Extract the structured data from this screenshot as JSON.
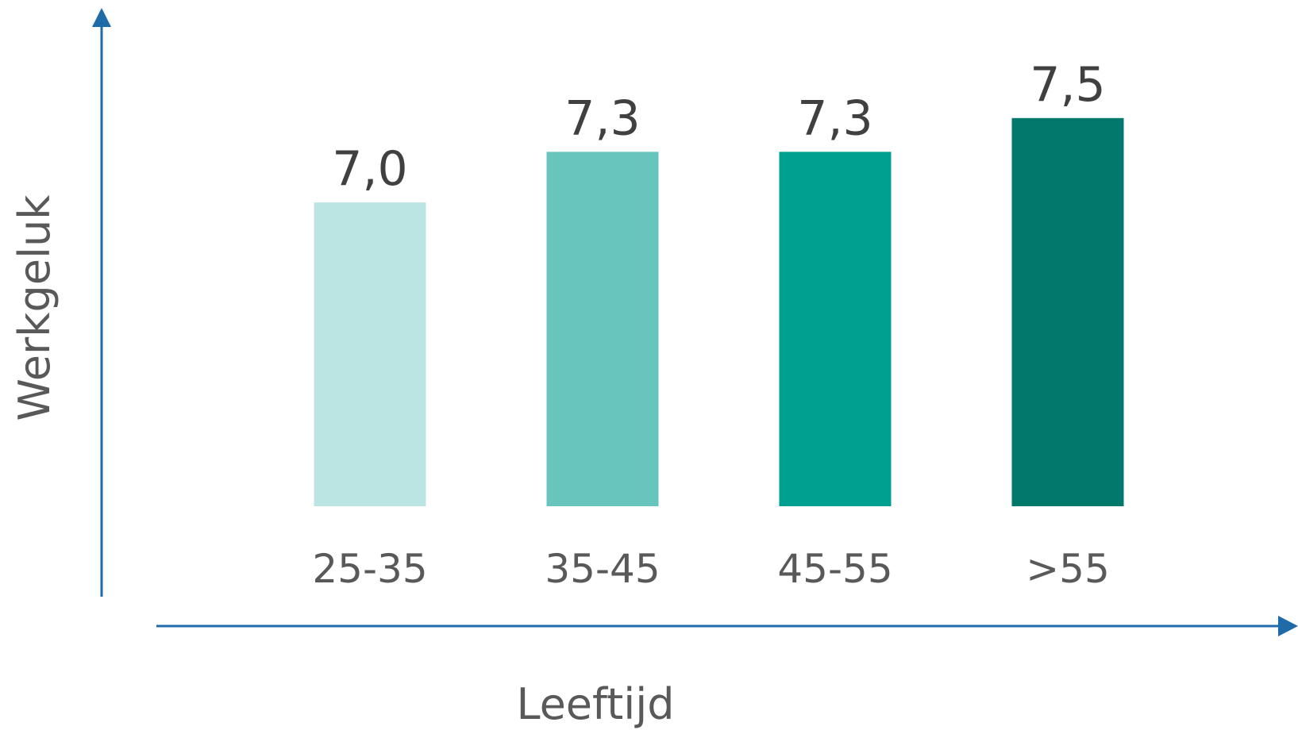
{
  "chart_data": {
    "type": "bar",
    "categories": [
      "25-35",
      "35-45",
      "45-55",
      ">55"
    ],
    "values": [
      7.0,
      7.3,
      7.3,
      7.5
    ],
    "value_labels": [
      "7,0",
      "7,3",
      "7,3",
      "7,5"
    ],
    "colors": [
      "#bbe5e3",
      "#68c5bd",
      "#00a090",
      "#00786b"
    ],
    "axis_color": "#1f6aa8",
    "title": "",
    "xlabel": "Leeftijd",
    "ylabel": "Werkgeluk",
    "ylim": [
      5.2,
      7.8
    ],
    "grid": false,
    "legend": "none"
  }
}
